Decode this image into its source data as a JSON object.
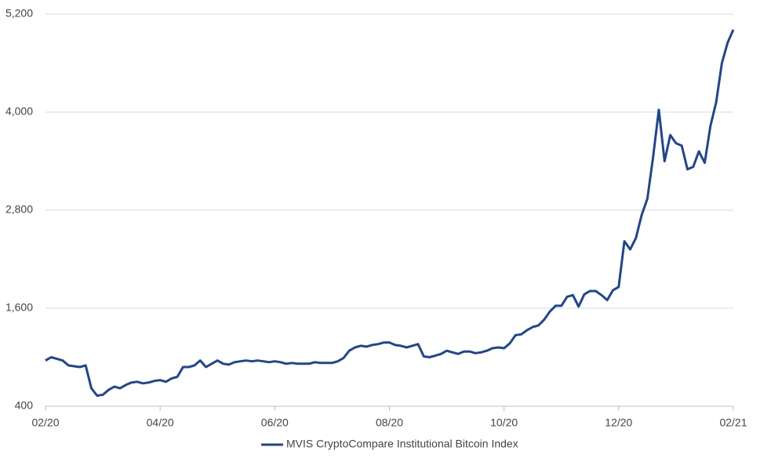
{
  "chart_data": {
    "type": "line",
    "categories": [
      "02/20",
      null,
      null,
      null,
      null,
      null,
      null,
      null,
      null,
      null,
      null,
      null,
      null,
      null,
      null,
      null,
      null,
      null,
      null,
      null,
      "04/20",
      null,
      null,
      null,
      null,
      null,
      null,
      null,
      null,
      null,
      null,
      null,
      null,
      null,
      null,
      null,
      null,
      null,
      null,
      null,
      "06/20",
      null,
      null,
      null,
      null,
      null,
      null,
      null,
      null,
      null,
      null,
      null,
      null,
      null,
      null,
      null,
      null,
      null,
      null,
      null,
      "08/20",
      null,
      null,
      null,
      null,
      null,
      null,
      null,
      null,
      null,
      null,
      null,
      null,
      null,
      null,
      null,
      null,
      null,
      null,
      null,
      "10/20",
      null,
      null,
      null,
      null,
      null,
      null,
      null,
      null,
      null,
      null,
      null,
      null,
      null,
      null,
      null,
      null,
      null,
      null,
      null,
      "12/20",
      null,
      null,
      null,
      null,
      null,
      null,
      null,
      null,
      null,
      null,
      null,
      null,
      null,
      null,
      null,
      null,
      null,
      null,
      null,
      "02/21"
    ],
    "series": [
      {
        "name": "MVIS CryptoCompare Institutional Bitcoin Index",
        "color": "#1f4690",
        "values": [
          960,
          1000,
          980,
          960,
          900,
          890,
          880,
          900,
          620,
          530,
          540,
          600,
          640,
          620,
          660,
          690,
          700,
          680,
          690,
          710,
          720,
          700,
          740,
          760,
          880,
          880,
          900,
          960,
          880,
          920,
          960,
          920,
          910,
          940,
          950,
          960,
          950,
          960,
          950,
          940,
          950,
          940,
          920,
          930,
          920,
          920,
          920,
          940,
          930,
          930,
          930,
          950,
          990,
          1080,
          1120,
          1140,
          1130,
          1150,
          1160,
          1180,
          1180,
          1150,
          1140,
          1120,
          1140,
          1160,
          1010,
          1000,
          1020,
          1040,
          1080,
          1060,
          1040,
          1070,
          1070,
          1050,
          1060,
          1080,
          1110,
          1120,
          1110,
          1170,
          1270,
          1280,
          1330,
          1370,
          1390,
          1460,
          1560,
          1630,
          1630,
          1740,
          1760,
          1620,
          1770,
          1810,
          1810,
          1760,
          1700,
          1820,
          1860,
          2420,
          2320,
          2460,
          2740,
          2940,
          3450,
          4030,
          3400,
          3720,
          3620,
          3590,
          3300,
          3330,
          3520,
          3380,
          3830,
          4120,
          4600,
          4850,
          5010
        ]
      }
    ],
    "ylim": [
      400,
      5200
    ],
    "yticks": [
      400,
      {
        "value": 1600,
        "label": "1,600"
      },
      {
        "value": 2800,
        "label": "2,800"
      },
      {
        "value": 4000,
        "label": "4,000"
      },
      {
        "value": 5200,
        "label": "5,200"
      }
    ],
    "grid": true,
    "legend": "bottom"
  }
}
